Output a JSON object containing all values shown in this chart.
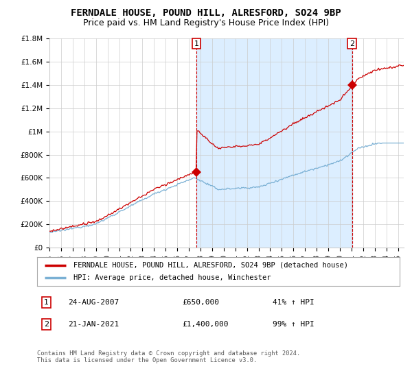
{
  "title": "FERNDALE HOUSE, POUND HILL, ALRESFORD, SO24 9BP",
  "subtitle": "Price paid vs. HM Land Registry's House Price Index (HPI)",
  "ylim": [
    0,
    1800000
  ],
  "yticks": [
    0,
    200000,
    400000,
    600000,
    800000,
    1000000,
    1200000,
    1400000,
    1600000,
    1800000
  ],
  "ytick_labels": [
    "£0",
    "£200K",
    "£400K",
    "£600K",
    "£800K",
    "£1M",
    "£1.2M",
    "£1.4M",
    "£1.6M",
    "£1.8M"
  ],
  "xlim_start": 1995.0,
  "xlim_end": 2025.5,
  "sale1_year": 2007.64,
  "sale1_price": 650000,
  "sale1_label": "1",
  "sale1_date": "24-AUG-2007",
  "sale1_display": "£650,000",
  "sale1_hpi": "41% ↑ HPI",
  "sale2_year": 2021.05,
  "sale2_price": 1400000,
  "sale2_label": "2",
  "sale2_date": "21-JAN-2021",
  "sale2_display": "£1,400,000",
  "sale2_hpi": "99% ↑ HPI",
  "line_house_color": "#cc0000",
  "line_hpi_color": "#7ab0d4",
  "shade_color": "#dceeff",
  "vline_color": "#cc0000",
  "background_color": "#ffffff",
  "grid_color": "#cccccc",
  "legend_house": "FERNDALE HOUSE, POUND HILL, ALRESFORD, SO24 9BP (detached house)",
  "legend_hpi": "HPI: Average price, detached house, Winchester",
  "footnote": "Contains HM Land Registry data © Crown copyright and database right 2024.\nThis data is licensed under the Open Government Licence v3.0.",
  "title_fontsize": 10,
  "subtitle_fontsize": 9,
  "tick_fontsize": 7.5,
  "legend_fontsize": 7.5,
  "table_fontsize": 8
}
